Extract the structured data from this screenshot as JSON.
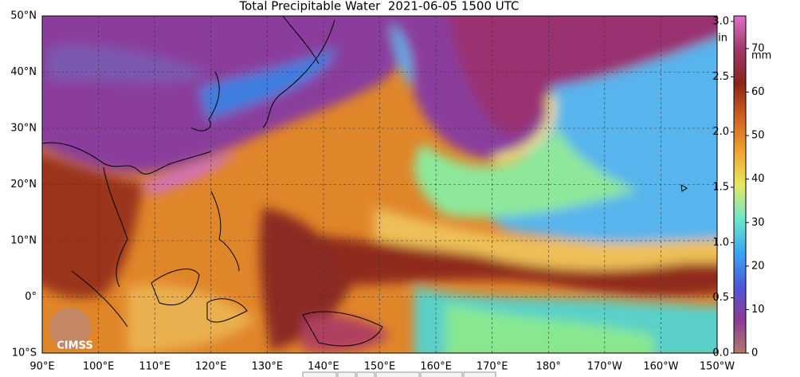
{
  "header": {
    "title": "Total Precipitable Water  2021-06-05 1500 UTC"
  },
  "map": {
    "lonlim": [
      90,
      210
    ],
    "latlim": [
      -10,
      50
    ],
    "lon_ticks": [
      {
        "value": 90,
        "label": "90°E"
      },
      {
        "value": 100,
        "label": "100°E"
      },
      {
        "value": 110,
        "label": "110°E"
      },
      {
        "value": 120,
        "label": "120°E"
      },
      {
        "value": 130,
        "label": "130°E"
      },
      {
        "value": 140,
        "label": "140°E"
      },
      {
        "value": 150,
        "label": "150°E"
      },
      {
        "value": 160,
        "label": "160°E"
      },
      {
        "value": 170,
        "label": "170°E"
      },
      {
        "value": 180,
        "label": "180°"
      },
      {
        "value": 190,
        "label": "170°W"
      },
      {
        "value": 200,
        "label": "160°W"
      },
      {
        "value": 210,
        "label": "150°W"
      }
    ],
    "lat_ticks": [
      {
        "value": 50,
        "label": "50°N"
      },
      {
        "value": 40,
        "label": "40°N"
      },
      {
        "value": 30,
        "label": "30°N"
      },
      {
        "value": 20,
        "label": "20°N"
      },
      {
        "value": 10,
        "label": "10°N"
      },
      {
        "value": 0,
        "label": "0°"
      },
      {
        "value": -10,
        "label": "10°S"
      }
    ],
    "grid": true
  },
  "colorbar": {
    "in_unit": "in",
    "mm_unit": "mm",
    "in_lim": [
      0,
      3.05
    ],
    "mm_lim": [
      0,
      77.5
    ],
    "in_ticks": [
      {
        "value": 0,
        "label": "0.0"
      },
      0.5,
      {
        "value": 1,
        "label": "1.0"
      },
      1.5,
      {
        "value": 2,
        "label": "2.0"
      },
      2.5,
      {
        "value": 3,
        "label": "3.0"
      }
    ],
    "mm_ticks": [
      0,
      10,
      20,
      30,
      40,
      50,
      60,
      70
    ],
    "colors": [
      "#b07a6a",
      "#8c3a98",
      "#4a5ad8",
      "#3aa8f0",
      "#6ee8c8",
      "#e8e860",
      "#f0a030",
      "#d06020",
      "#8a2418",
      "#a03868",
      "#e070c8"
    ]
  },
  "logo": {
    "text": "CIMSS"
  }
}
